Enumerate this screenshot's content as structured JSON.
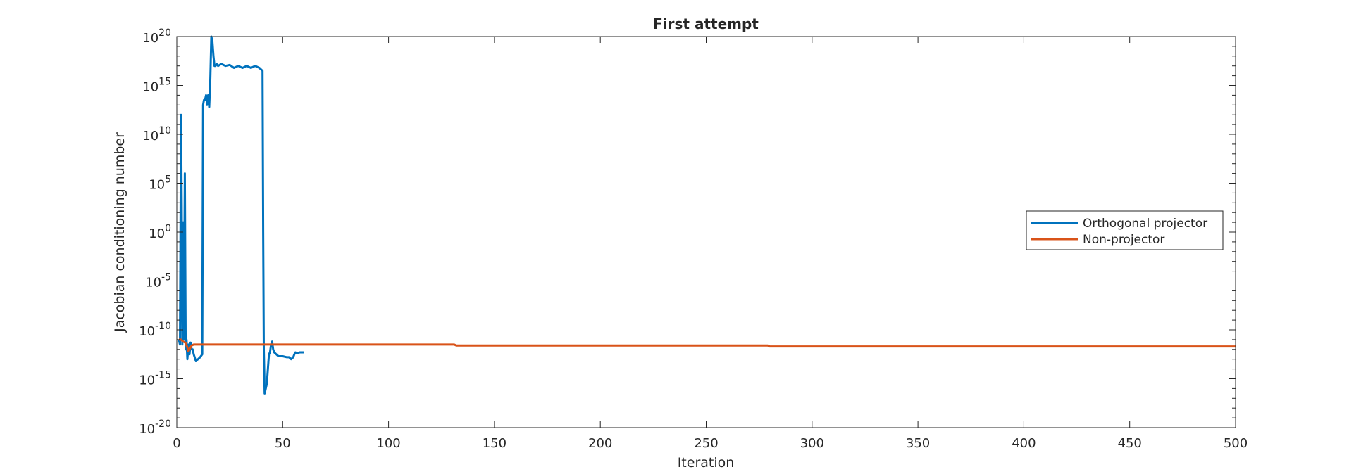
{
  "chart_data": {
    "type": "line",
    "title": "First attempt",
    "xlabel": "Iteration",
    "ylabel": "Jacobian conditioning number",
    "xlim": [
      0,
      500
    ],
    "ylim_exponent": [
      -20,
      20
    ],
    "yscale": "log",
    "grid": false,
    "legend_position": "right",
    "x_ticks": [
      "0",
      "50",
      "100",
      "150",
      "200",
      "250",
      "300",
      "350",
      "400",
      "450",
      "500"
    ],
    "y_tick_base": "10",
    "y_tick_exponents": [
      "-20",
      "-15",
      "-10",
      "-5",
      "0",
      "5",
      "10",
      "15",
      "20"
    ],
    "series": [
      {
        "name": "Orthogonal projector",
        "color": "#0072BD",
        "x": [
          1,
          1.5,
          2,
          2.3,
          2.6,
          3,
          3.4,
          3.8,
          4.2,
          4.6,
          5,
          5.5,
          6,
          6.5,
          7,
          7.5,
          8,
          9,
          10,
          11,
          12,
          12.4,
          12.8,
          13.3,
          13.8,
          14.3,
          14.8,
          15.3,
          15.8,
          16.3,
          16.8,
          17.3,
          17.8,
          18.3,
          18.8,
          19.5,
          21,
          23,
          25,
          27,
          29,
          31,
          33,
          35,
          37,
          39,
          40.5,
          40.8,
          41.1,
          41.5,
          42,
          42.5,
          43,
          43.5,
          44,
          44.5,
          45,
          45.5,
          46,
          47,
          48,
          50,
          52,
          53,
          54,
          55,
          55.5,
          56,
          57,
          58,
          59,
          60
        ],
        "y_log10": [
          -11,
          -11.5,
          12,
          3,
          -11.5,
          1,
          -11,
          6,
          -12,
          -11,
          -13,
          -11.5,
          -12.5,
          -11.3,
          -12,
          -12,
          -12.5,
          -13.2,
          -13,
          -12.8,
          -12.5,
          13,
          13.5,
          13.5,
          14,
          13,
          14,
          12.8,
          15.5,
          20,
          19.5,
          18,
          17,
          17,
          17.2,
          17,
          17.2,
          17,
          17.1,
          16.8,
          17,
          16.8,
          17,
          16.8,
          17,
          16.8,
          16.5,
          0,
          -12,
          -16.5,
          -16,
          -15.5,
          -14,
          -12.5,
          -12.3,
          -11.5,
          -11.2,
          -12,
          -12.3,
          -12.5,
          -12.7,
          -12.7,
          -12.8,
          -12.8,
          -13,
          -12.8,
          -12.5,
          -12.3,
          -12.4,
          -12.3,
          -12.3,
          -12.3
        ],
        "note_values": "values are log10 of the conditioning number"
      },
      {
        "name": "Non-projector",
        "color": "#D95319",
        "x": [
          1,
          2,
          3,
          4,
          5,
          5.5,
          6,
          7,
          8,
          10,
          20,
          40,
          60,
          80,
          100,
          131,
          132,
          200,
          279,
          280,
          350,
          400,
          450,
          500
        ],
        "y_log10": [
          -11,
          -11,
          -11.2,
          -11.3,
          -11.8,
          -12.2,
          -12.0,
          -11.6,
          -11.5,
          -11.5,
          -11.5,
          -11.5,
          -11.5,
          -11.5,
          -11.5,
          -11.5,
          -11.6,
          -11.6,
          -11.6,
          -11.7,
          -11.7,
          -11.7,
          -11.7,
          -11.7
        ]
      }
    ]
  }
}
